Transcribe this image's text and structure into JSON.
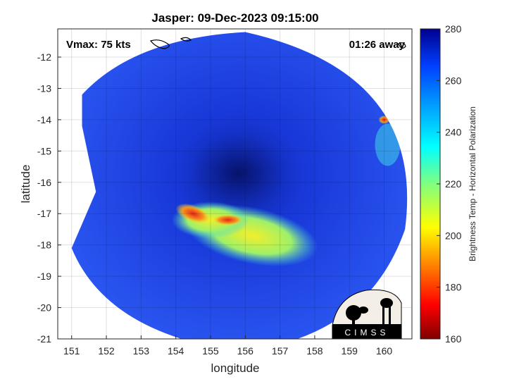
{
  "chart_data": {
    "type": "heatmap",
    "title": "Jasper: 09-Dec-2023 09:15:00",
    "xlabel": "longitude",
    "ylabel": "latitude",
    "xlim": [
      150.6,
      160.8
    ],
    "ylim": [
      -21,
      -11.1
    ],
    "xticks": [
      151,
      152,
      153,
      154,
      155,
      156,
      157,
      158,
      159,
      160
    ],
    "xtick_labels": [
      "151",
      "152",
      "153",
      "154",
      "155",
      "156",
      "157",
      "158",
      "159",
      "160"
    ],
    "yticks": [
      -12,
      -13,
      -14,
      -15,
      -16,
      -17,
      -18,
      -19,
      -20,
      -21
    ],
    "ytick_labels": [
      "-12",
      "-13",
      "-14",
      "-15",
      "-16",
      "-17",
      "-18",
      "-19",
      "-20",
      "-21"
    ],
    "grid": true,
    "annotations": {
      "vmax": "Vmax: 75 kts",
      "time_away": "01:26 away"
    },
    "colorbar": {
      "label": "Brightness Temp - Horizontal Polarization",
      "range": [
        160,
        280
      ],
      "ticks": [
        280,
        260,
        240,
        220,
        200,
        180,
        160
      ],
      "tick_labels": [
        "280",
        "260",
        "240",
        "220",
        "200",
        "180",
        "160"
      ],
      "colormap": "jet"
    },
    "features": {
      "swath_center": [
        155.8,
        -16.3
      ],
      "eye_center": [
        155.8,
        -15.7
      ],
      "min_temp_region": [
        154.5,
        -17.0
      ]
    },
    "logo_text": "CIMSS"
  },
  "colors": {
    "swath_base": "#1a3ee8",
    "swath_dark": "#0b1f9e",
    "cold_band": "#f5e626",
    "coldest": "#e8321e",
    "mid": "#55e0c8"
  }
}
